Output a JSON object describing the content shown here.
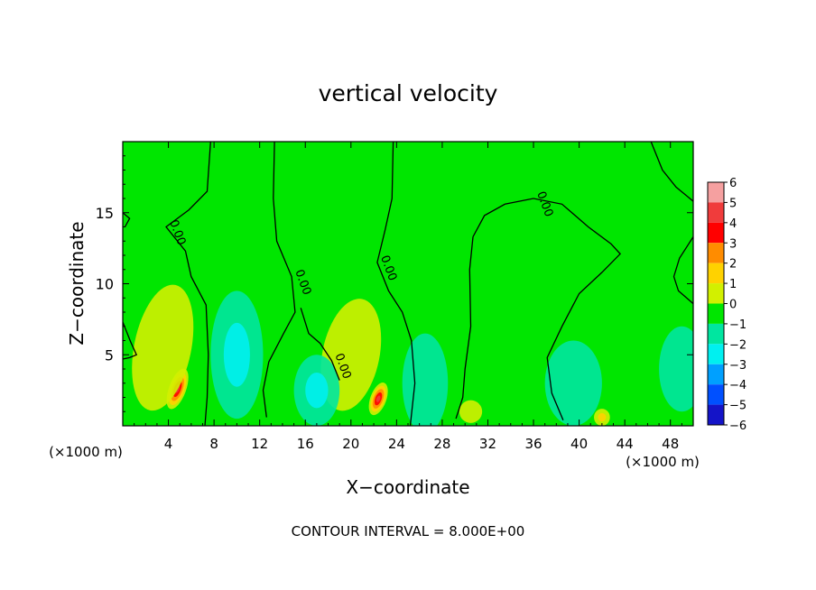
{
  "chart_data": {
    "type": "heatmap",
    "title": "vertical velocity",
    "xlabel": "X−coordinate",
    "ylabel": "Z−coordinate",
    "x_unit_left": "(×1000 m)",
    "x_unit_right": "(×1000 m)",
    "footer": "CONTOUR INTERVAL = 8.000E+00",
    "xlim": [
      0,
      50
    ],
    "ylim": [
      0,
      20
    ],
    "x_ticks": [
      4,
      8,
      12,
      16,
      20,
      24,
      28,
      32,
      36,
      40,
      44,
      48
    ],
    "x_tick_labels": [
      "4",
      "8",
      "12",
      "16",
      "20",
      "24",
      "28",
      "32",
      "36",
      "40",
      "44",
      "48"
    ],
    "y_ticks": [
      5,
      10,
      15
    ],
    "y_tick_labels": [
      "5",
      "10",
      "15"
    ],
    "background_value": 0.2,
    "colorbar": {
      "levels": [
        6,
        5,
        4,
        3,
        2,
        1,
        0,
        -1,
        -2,
        -3,
        -4,
        -5,
        -6
      ],
      "labels": [
        "6",
        "5",
        "4",
        "3",
        "2",
        "1",
        "0",
        "−1",
        "−2",
        "−3",
        "−4",
        "−5",
        "−6"
      ],
      "colors": [
        "#f5a0a0",
        "#f03c3c",
        "#ff0000",
        "#ff8c00",
        "#ffd200",
        "#d2f000",
        "#00e600",
        "#00e6a0",
        "#00f0f0",
        "#00a0ff",
        "#0050ff",
        "#1414c8",
        "#8c14c8"
      ]
    },
    "features": [
      {
        "name": "updraft-1",
        "x": 4.8,
        "z": 2.6,
        "amplitude": 5.3,
        "sx": 0.75,
        "sz": 1.5,
        "tilt": 0.35
      },
      {
        "name": "updraft-2",
        "x": 22.4,
        "z": 1.9,
        "amplitude": 4.5,
        "sx": 0.7,
        "sz": 1.2,
        "tilt": 0.35
      },
      {
        "name": "glow-1",
        "x": 3.5,
        "z": 5.5,
        "amplitude": 1.0,
        "sx": 2.5,
        "sz": 4.5,
        "tilt": 0.2
      },
      {
        "name": "glow-2",
        "x": 20.0,
        "z": 5.0,
        "amplitude": 1.0,
        "sx": 2.5,
        "sz": 4.0,
        "tilt": 0.2
      },
      {
        "name": "downdraft-1",
        "x": 10.0,
        "z": 5.0,
        "amplitude": -1.7,
        "sx": 2.3,
        "sz": 4.5,
        "tilt": 0
      },
      {
        "name": "downdraft-2",
        "x": 17.0,
        "z": 2.5,
        "amplitude": -2.0,
        "sx": 2.0,
        "sz": 2.5,
        "tilt": 0
      },
      {
        "name": "downdraft-3",
        "x": 26.5,
        "z": 3.0,
        "amplitude": -1.2,
        "sx": 2.0,
        "sz": 3.5,
        "tilt": 0
      },
      {
        "name": "downdraft-4",
        "x": 39.5,
        "z": 3.0,
        "amplitude": -1.3,
        "sx": 2.5,
        "sz": 3.0,
        "tilt": 0
      },
      {
        "name": "downdraft-5",
        "x": 49.0,
        "z": 4.0,
        "amplitude": -1.0,
        "sx": 2.0,
        "sz": 3.0,
        "tilt": 0
      },
      {
        "name": "weak-up-1",
        "x": 30.5,
        "z": 1.0,
        "amplitude": 1.2,
        "sx": 1.0,
        "sz": 0.8,
        "tilt": 0
      },
      {
        "name": "weak-up-2",
        "x": 42.0,
        "z": 0.6,
        "amplitude": 1.6,
        "sx": 0.7,
        "sz": 0.6,
        "tilt": 0
      }
    ],
    "contours": [
      {
        "label": "0.00",
        "points": [
          [
            7.7,
            20
          ],
          [
            7.4,
            16.5
          ],
          [
            5.8,
            15.2
          ],
          [
            3.8,
            14.0
          ],
          [
            5.5,
            12.3
          ],
          [
            6.0,
            10.5
          ],
          [
            7.3,
            8.5
          ],
          [
            7.5,
            5.0
          ],
          [
            7.4,
            2.0
          ],
          [
            7.2,
            0
          ]
        ]
      },
      {
        "label": "0.00",
        "points": [
          [
            13.3,
            20
          ],
          [
            13.2,
            16
          ],
          [
            13.5,
            13
          ],
          [
            14.8,
            10.5
          ],
          [
            15.1,
            8
          ],
          [
            14.1,
            6.5
          ],
          [
            12.8,
            4.5
          ],
          [
            12.3,
            2.5
          ],
          [
            12.6,
            0.6
          ]
        ]
      },
      {
        "label": "0.00",
        "points": [
          [
            15.6,
            8.3
          ],
          [
            16.3,
            6.5
          ],
          [
            17.3,
            5.8
          ],
          [
            18.3,
            4.6
          ],
          [
            19.0,
            3.2
          ]
        ]
      },
      {
        "label": "0.00",
        "points": [
          [
            23.7,
            20
          ],
          [
            23.6,
            16
          ],
          [
            23.0,
            13.8
          ],
          [
            22.3,
            11.5
          ],
          [
            23.3,
            9.5
          ],
          [
            24.5,
            8
          ],
          [
            25.3,
            6
          ],
          [
            25.6,
            3
          ],
          [
            25.2,
            0
          ]
        ]
      },
      {
        "label": "0.00",
        "points": [
          [
            30.7,
            13.3
          ],
          [
            31.7,
            14.8
          ],
          [
            33.5,
            15.6
          ],
          [
            36.0,
            16.0
          ],
          [
            38.5,
            15.6
          ],
          [
            40.8,
            14.0
          ],
          [
            42.8,
            12.8
          ],
          [
            43.6,
            12.1
          ],
          [
            42.0,
            10.8
          ],
          [
            40.0,
            9.3
          ],
          [
            38.5,
            7.0
          ],
          [
            37.2,
            4.8
          ],
          [
            37.6,
            2.3
          ],
          [
            38.6,
            0.4
          ]
        ]
      },
      {
        "label": "",
        "points": [
          [
            30.7,
            13.3
          ],
          [
            30.4,
            11
          ],
          [
            30.5,
            7
          ],
          [
            30.0,
            4
          ],
          [
            29.8,
            2.0
          ],
          [
            29.2,
            0.5
          ]
        ]
      },
      {
        "label": "",
        "points": [
          [
            46.3,
            20
          ],
          [
            47.3,
            18
          ],
          [
            48.5,
            16.8
          ],
          [
            50,
            15.8
          ]
        ]
      },
      {
        "label": "",
        "points": [
          [
            50,
            13.3
          ],
          [
            48.8,
            11.8
          ],
          [
            48.3,
            10.5
          ],
          [
            48.7,
            9.5
          ],
          [
            50,
            8.6
          ]
        ]
      },
      {
        "label": "",
        "points": [
          [
            0,
            15.0
          ],
          [
            0.6,
            14.6
          ],
          [
            0.2,
            14.0
          ]
        ]
      },
      {
        "label": "",
        "points": [
          [
            0,
            7.3
          ],
          [
            0.7,
            5.9
          ],
          [
            1.2,
            5.0
          ],
          [
            0.6,
            4.8
          ],
          [
            0,
            4.7
          ]
        ]
      }
    ]
  }
}
